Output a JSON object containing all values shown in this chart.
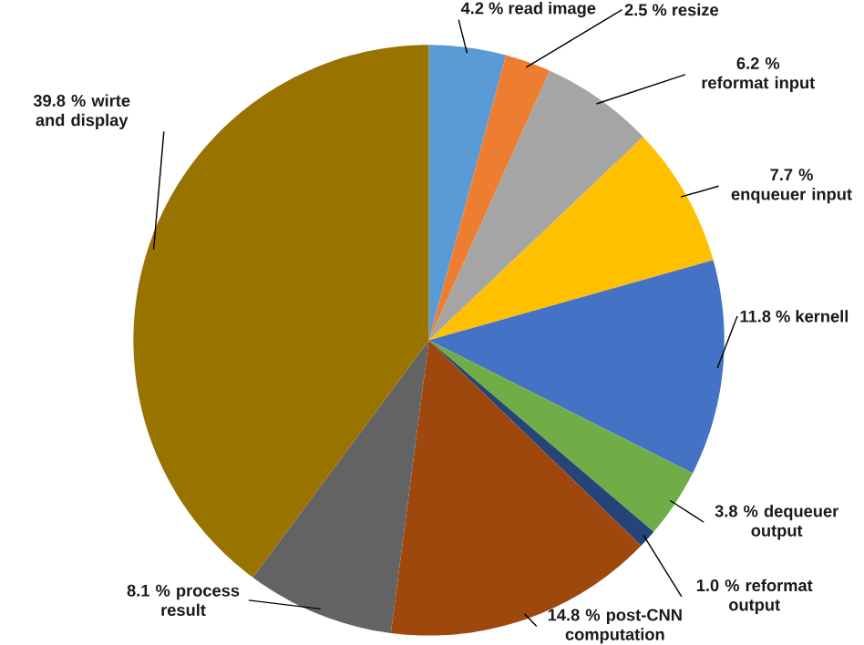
{
  "chart_data": {
    "type": "pie",
    "categories": [
      "read image",
      "resize",
      "reformat input",
      "enqueuer input",
      "kernell",
      "dequeuer output",
      "reformat output",
      "post-CNN computation",
      "process result",
      "wirte and display"
    ],
    "values": [
      4.2,
      2.5,
      6.2,
      7.7,
      11.8,
      3.8,
      1.0,
      14.8,
      8.1,
      39.8
    ],
    "value_labels": [
      "4.2 %",
      "2.5 %",
      "6.2 %",
      "7.7 %",
      "11.8 %",
      "3.8 %",
      "1.0 %",
      "14.8 %",
      "8.1 %",
      "39.8 %"
    ],
    "colors": [
      "#5b9bd5",
      "#ed7d31",
      "#a5a5a5",
      "#ffc000",
      "#4472c4",
      "#70ad47",
      "#264478",
      "#9e480e",
      "#636363",
      "#997300"
    ]
  }
}
